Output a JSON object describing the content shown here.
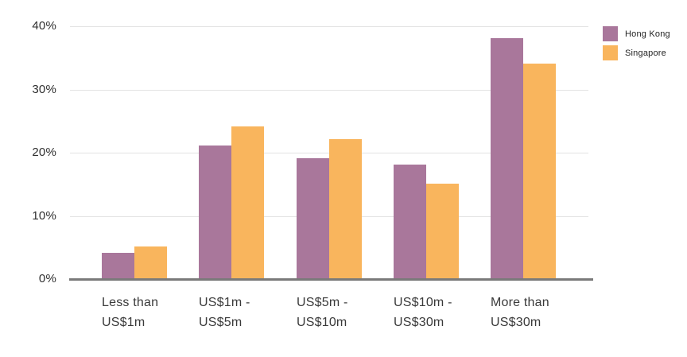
{
  "chart_data": {
    "type": "bar",
    "title": "",
    "categories": [
      [
        "Less than",
        "US$1m"
      ],
      [
        "US$1m -",
        "US$5m"
      ],
      [
        "US$5m -",
        "US$10m"
      ],
      [
        "US$10m -",
        "US$30m"
      ],
      [
        "More than",
        "US$30m"
      ]
    ],
    "series": [
      {
        "name": "Hong Kong",
        "color": "#A9779B",
        "values": [
          4,
          21,
          19,
          18,
          38
        ]
      },
      {
        "name": "Singapore",
        "color": "#F9B55D",
        "values": [
          5,
          24,
          22,
          15,
          34
        ]
      }
    ],
    "y_ticks": [
      {
        "label": "0%",
        "value": 0
      },
      {
        "label": "10%",
        "value": 10
      },
      {
        "label": "20%",
        "value": 20
      },
      {
        "label": "30%",
        "value": 30
      },
      {
        "label": "40%",
        "value": 40
      }
    ],
    "ylim": [
      0,
      40
    ],
    "xlabel": "",
    "ylabel": "",
    "grid": true,
    "legend_position": "top-right",
    "colors": {
      "grid_line": "#E3E3E3",
      "axis_line": "#7A7A7A",
      "tick_text": "#2E2E2E",
      "category_text": "#3A3A3A",
      "legend_text": "#1F1F1F",
      "background": "#FFFFFF"
    }
  }
}
